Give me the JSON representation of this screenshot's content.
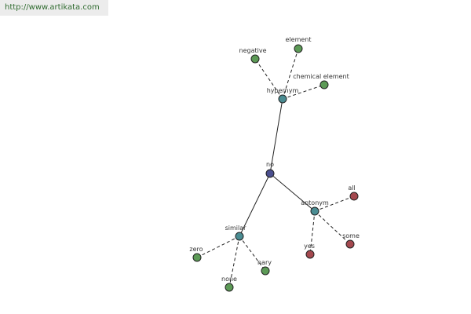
{
  "header": {
    "url": "http://www.artikata.com"
  },
  "nodes": [
    {
      "label": "no"
    },
    {
      "label": "hypernym"
    },
    {
      "label": "antonym"
    },
    {
      "label": "similar"
    },
    {
      "label": "negative"
    },
    {
      "label": "element"
    },
    {
      "label": "chemical element"
    },
    {
      "label": "all"
    },
    {
      "label": "some"
    },
    {
      "label": "yes"
    },
    {
      "label": "zero"
    },
    {
      "label": "none"
    },
    {
      "label": "nary"
    }
  ]
}
